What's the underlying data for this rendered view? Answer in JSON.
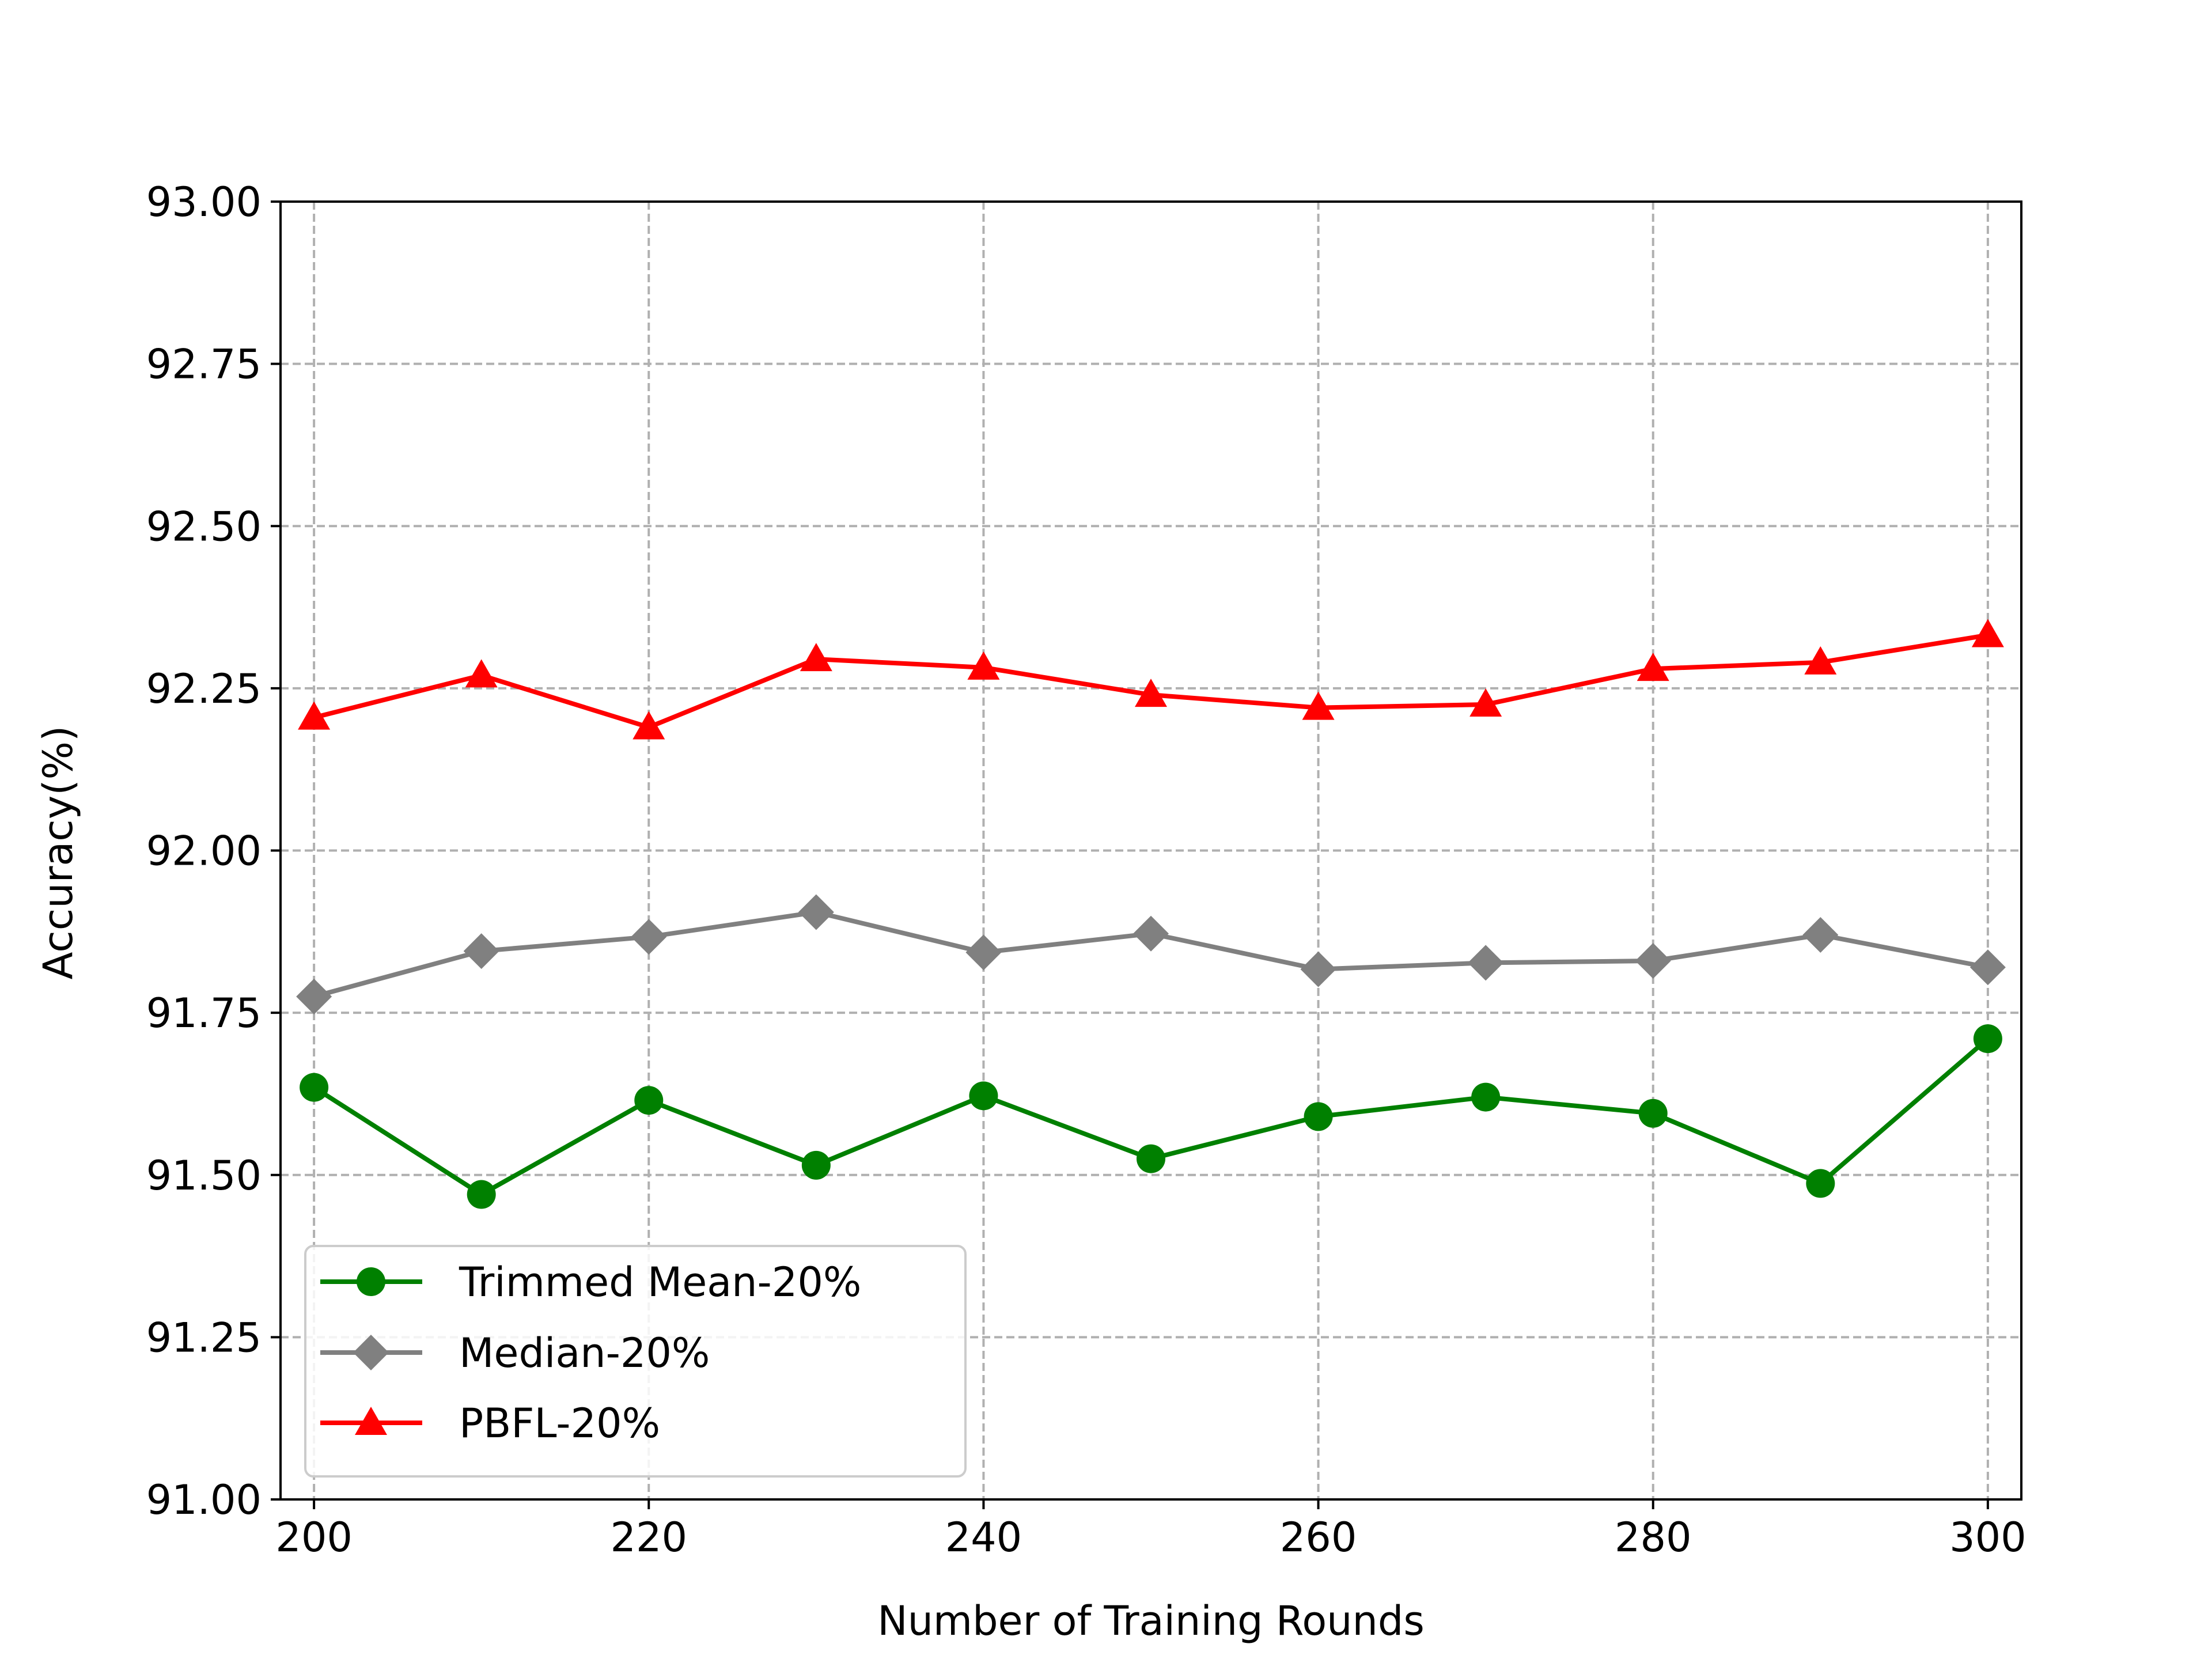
{
  "chart_data": {
    "type": "line",
    "title": "",
    "xlabel": "Number of Training Rounds",
    "ylabel": "Accuracy(%)",
    "xlim": [
      198,
      302
    ],
    "ylim": [
      91.0,
      93.0
    ],
    "xticks": [
      200,
      220,
      240,
      260,
      280,
      300
    ],
    "xtick_labels": [
      "200",
      "220",
      "240",
      "260",
      "280",
      "300"
    ],
    "yticks": [
      91.0,
      91.25,
      91.5,
      91.75,
      92.0,
      92.25,
      92.5,
      92.75,
      93.0
    ],
    "ytick_labels": [
      "91.00",
      "91.25",
      "91.50",
      "91.75",
      "92.00",
      "92.25",
      "92.50",
      "92.75",
      "93.00"
    ],
    "grid": true,
    "legend_position": "lower-left",
    "x": [
      200,
      210,
      220,
      230,
      240,
      250,
      260,
      270,
      280,
      290,
      300
    ],
    "series": [
      {
        "name": "Trimmed Mean-20%",
        "color": "#008000",
        "marker": "circle",
        "values": [
          91.635,
          91.47,
          91.615,
          91.515,
          91.622,
          91.525,
          91.59,
          91.62,
          91.595,
          91.487,
          91.71
        ]
      },
      {
        "name": "Median-20%",
        "color": "#808080",
        "marker": "diamond",
        "values": [
          91.775,
          91.845,
          91.867,
          91.905,
          91.843,
          91.872,
          91.817,
          91.827,
          91.83,
          91.87,
          91.82
        ]
      },
      {
        "name": "PBFL-20%",
        "color": "#ff0000",
        "marker": "triangle",
        "values": [
          92.205,
          92.27,
          92.19,
          92.295,
          92.282,
          92.24,
          92.22,
          92.225,
          92.28,
          92.29,
          92.332
        ]
      }
    ]
  }
}
